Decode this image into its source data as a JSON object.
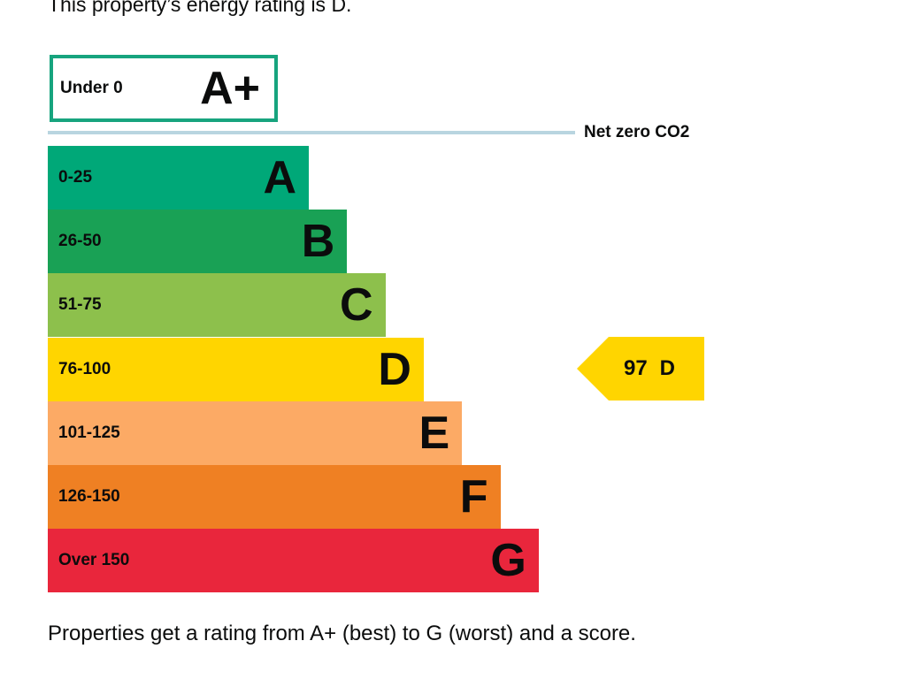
{
  "intro": "This property’s energy rating is D.",
  "top_band": {
    "range": "Under 0",
    "letter": "A+"
  },
  "net_zero_label": "Net zero CO2",
  "bands": [
    {
      "range": "0-25",
      "letter": "A",
      "color": "#00a878"
    },
    {
      "range": "26-50",
      "letter": "B",
      "color": "#19a155"
    },
    {
      "range": "51-75",
      "letter": "C",
      "color": "#8dc04c"
    },
    {
      "range": "76-100",
      "letter": "D",
      "color": "#ffd500"
    },
    {
      "range": "101-125",
      "letter": "E",
      "color": "#fcaa65"
    },
    {
      "range": "126-150",
      "letter": "F",
      "color": "#ef8023"
    },
    {
      "range": "Over 150",
      "letter": "G",
      "color": "#e9263c"
    }
  ],
  "current": {
    "score": "97",
    "letter": "D"
  },
  "footer": "Properties get a rating from A+ (best) to G (worst) and a score."
}
